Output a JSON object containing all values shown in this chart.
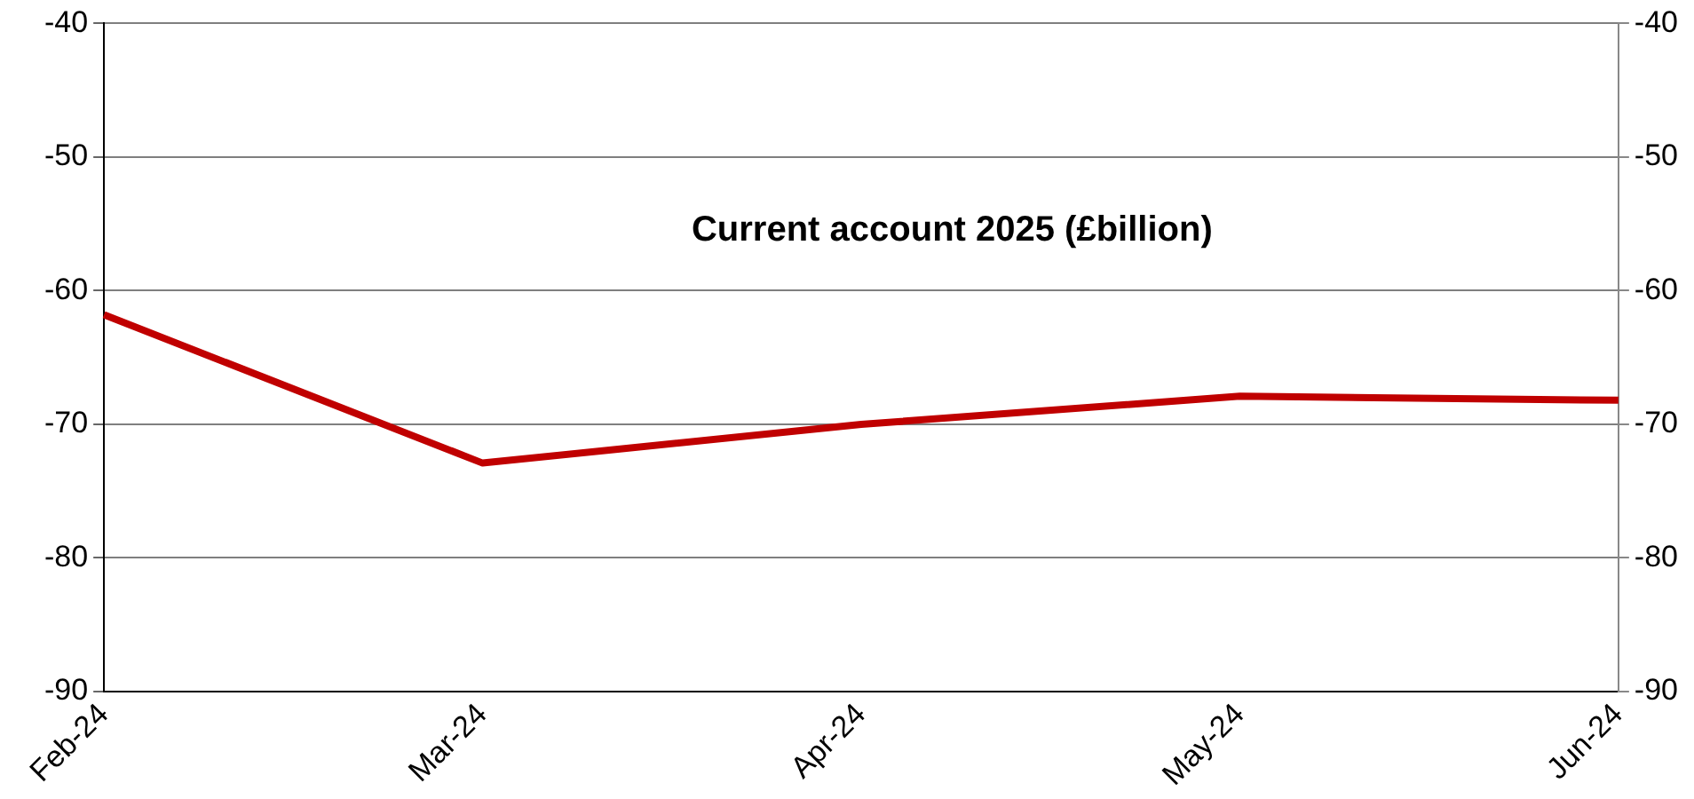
{
  "chart_data": {
    "type": "line",
    "title": "Current account 2025 (£billion)",
    "categories": [
      "Feb-24",
      "Mar-24",
      "Apr-24",
      "May-24",
      "Jun-24"
    ],
    "series": [
      {
        "color": "#c00000",
        "values": [
          -61.8,
          -72.9,
          -70.0,
          -67.9,
          -68.2
        ]
      }
    ],
    "ylim": [
      -90,
      -40
    ],
    "yticks": [
      -90,
      -80,
      -70,
      -60,
      -50,
      -40
    ],
    "y2lim": [
      -90,
      -40
    ],
    "y2ticks": [
      -90,
      -80,
      -70,
      -60,
      -50,
      -40
    ],
    "grid": "y",
    "legend": false,
    "marker": "none",
    "line_style": "solid"
  }
}
